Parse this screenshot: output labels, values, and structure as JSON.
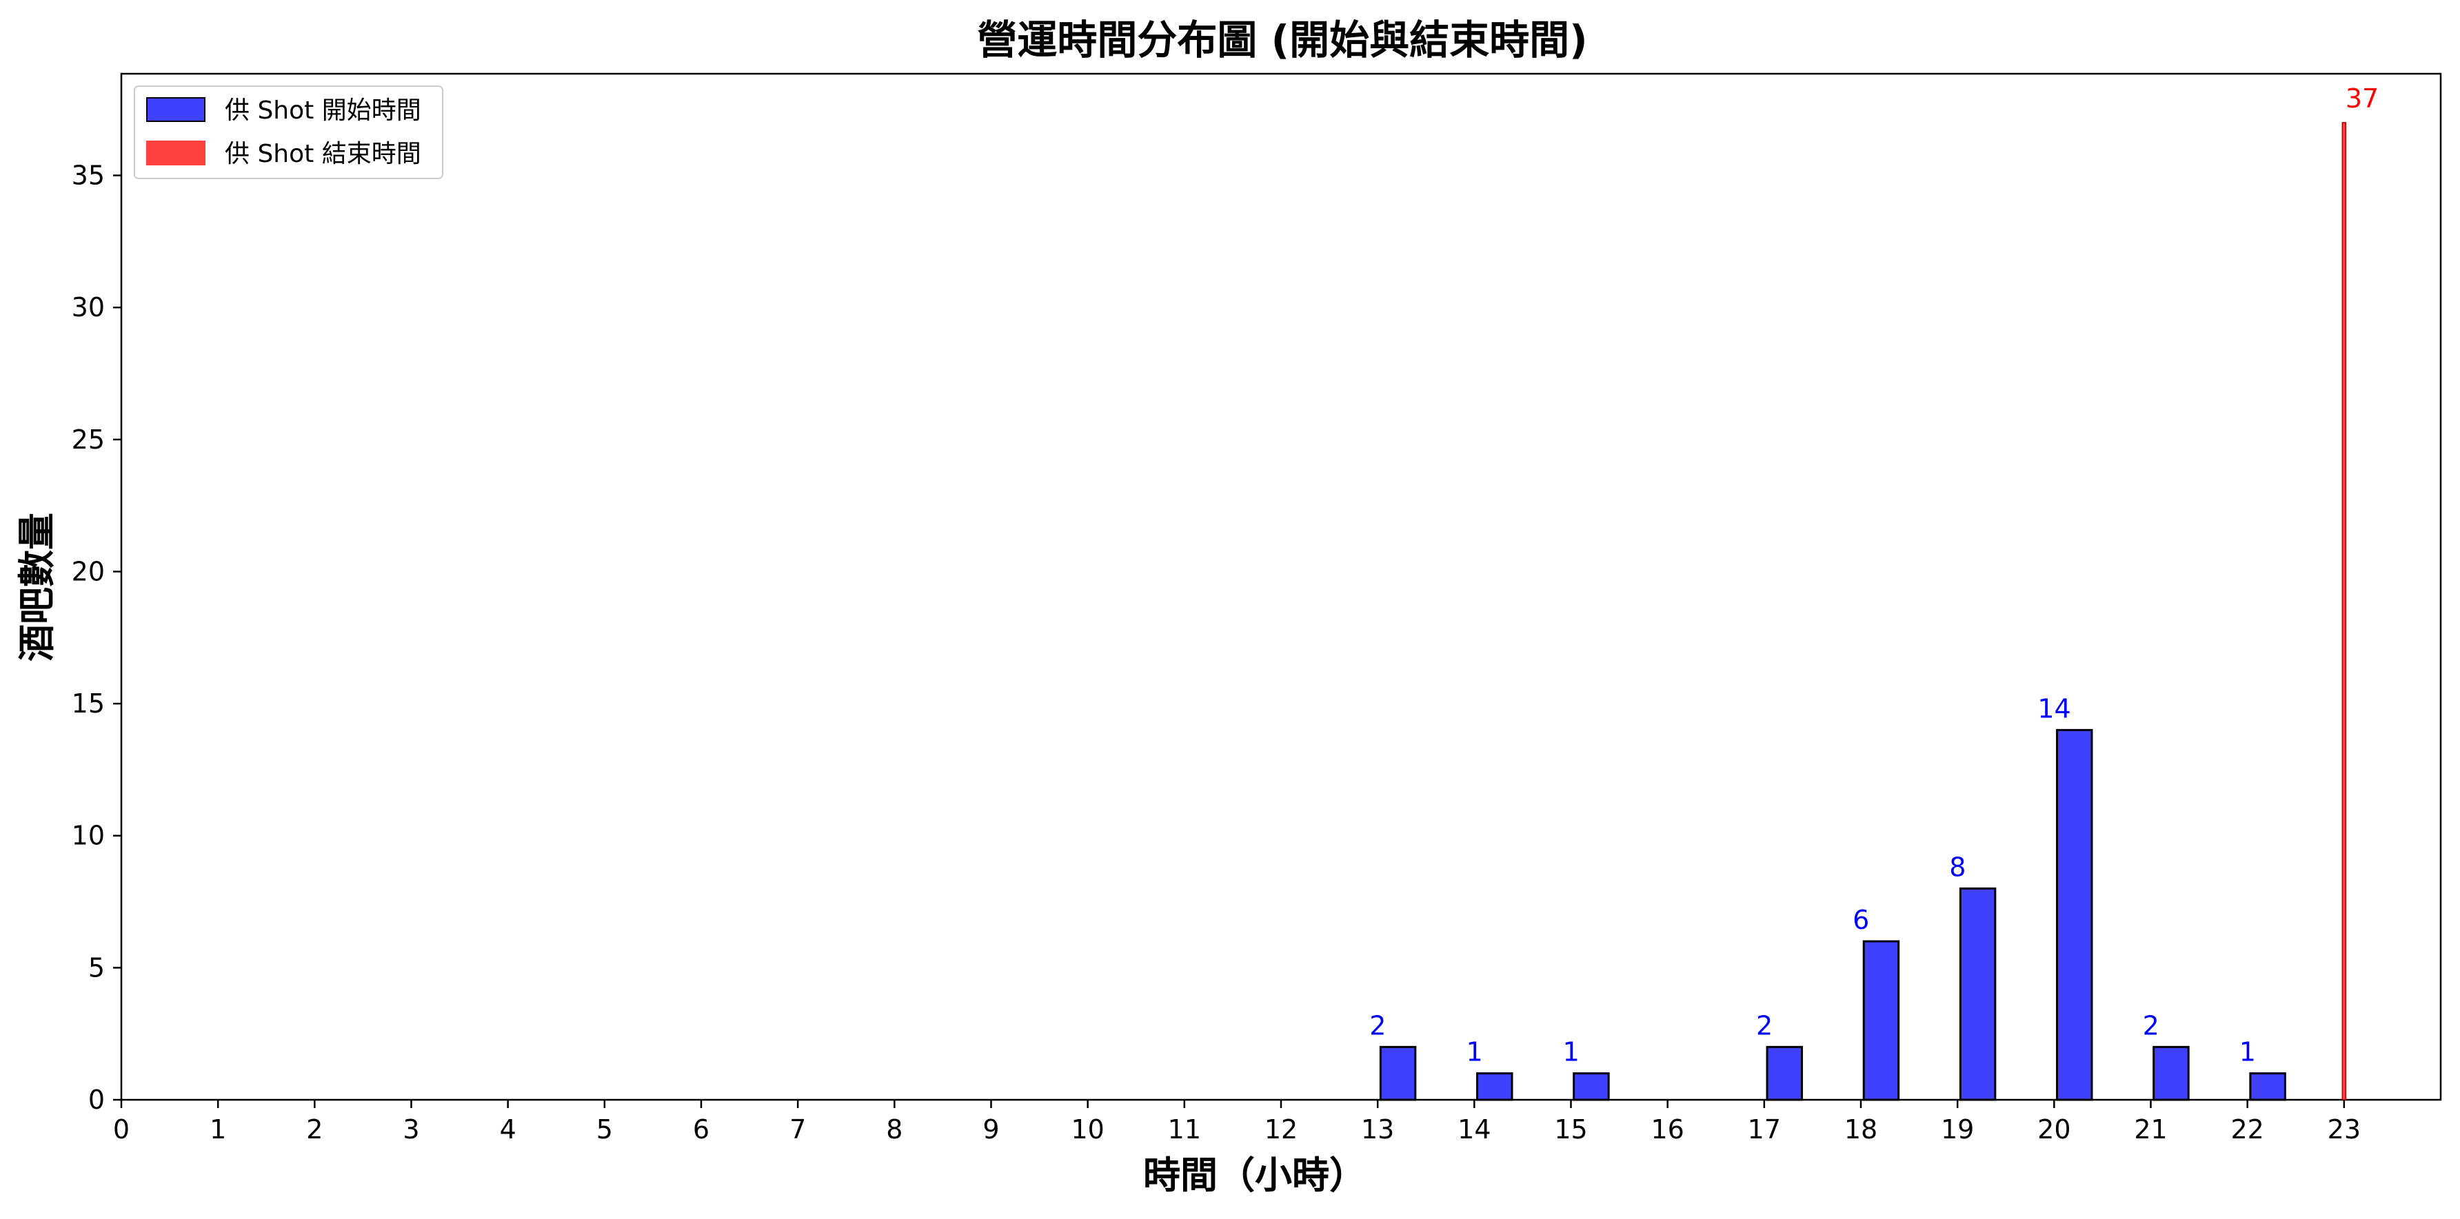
{
  "chart_data": {
    "type": "bar",
    "title": "營運時間分布圖 (開始與結束時間)",
    "xlabel": "時間（小時）",
    "ylabel": "酒吧數量",
    "xlim": [
      0,
      24
    ],
    "ylim": [
      0,
      38.85
    ],
    "x_ticks": [
      "0",
      "1",
      "2",
      "3",
      "4",
      "5",
      "6",
      "7",
      "8",
      "9",
      "10",
      "11",
      "12",
      "13",
      "14",
      "15",
      "16",
      "17",
      "18",
      "19",
      "20",
      "21",
      "22",
      "23"
    ],
    "y_ticks": [
      "0",
      "5",
      "10",
      "15",
      "20",
      "25",
      "30",
      "35"
    ],
    "grid": false,
    "legend_position": "top-left",
    "series": [
      {
        "name": "供 Shot 開始時間",
        "color": "#4040ff",
        "x": [
          13,
          14,
          15,
          17,
          18,
          19,
          20,
          21,
          22
        ],
        "values": [
          2,
          1,
          1,
          2,
          6,
          8,
          14,
          2,
          1
        ],
        "label_color": "#0000ff"
      },
      {
        "name": "供 Shot 結束時間",
        "color": "#ff4040",
        "x": [
          23
        ],
        "values": [
          37
        ],
        "label_color": "#ff0000"
      }
    ]
  }
}
